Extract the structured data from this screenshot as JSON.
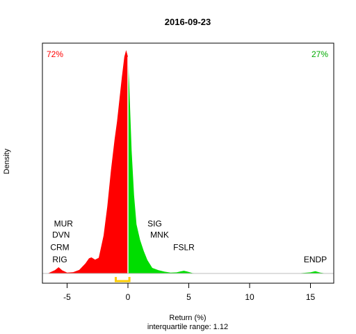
{
  "chart_data": {
    "type": "area",
    "title": "2016-09-23",
    "xlabel": "Return (%)",
    "ylabel": "Density",
    "subtitle": "interquartile range: 1.12",
    "xlim": [
      -7,
      16.5
    ],
    "x_ticks": [
      -5,
      0,
      5,
      10,
      15
    ],
    "x_tick_labels": [
      "-5",
      "0",
      "5",
      "10",
      "15"
    ],
    "negative_share": "72%",
    "positive_share": "27%",
    "colors": {
      "negative": "#ff0000",
      "positive": "#00dd00",
      "iqr": "#ffcc00",
      "baseline": "#bebebe"
    },
    "iqr_range": [
      -1.0,
      0.12
    ],
    "series": [
      {
        "name": "",
        "x": [
          -6.6,
          -6.0,
          -5.7,
          -5.4,
          -5.0,
          -4.5,
          -4.0,
          -3.5,
          -3.2,
          -3.0,
          -2.7,
          -2.4,
          -2.0,
          -1.7,
          -1.4,
          -1.1,
          -0.9,
          -0.7,
          -0.5,
          -0.3,
          -0.15,
          0.0,
          0.1,
          0.3,
          0.5,
          0.7,
          1.0,
          1.3,
          1.6,
          2.0,
          2.5,
          3.0,
          3.5,
          4.0,
          4.3,
          4.6,
          4.9,
          5.3,
          6.0,
          8.0,
          10.0,
          12.0,
          14.0,
          15.0,
          15.4,
          15.8,
          16.3
        ],
        "y": [
          0.0,
          0.015,
          0.028,
          0.014,
          0.004,
          0.006,
          0.016,
          0.045,
          0.068,
          0.072,
          0.062,
          0.07,
          0.17,
          0.3,
          0.46,
          0.6,
          0.68,
          0.78,
          0.88,
          0.97,
          1.0,
          0.97,
          0.85,
          0.55,
          0.35,
          0.22,
          0.15,
          0.1,
          0.06,
          0.025,
          0.015,
          0.008,
          0.004,
          0.005,
          0.009,
          0.012,
          0.008,
          0.002,
          0.0,
          0.0,
          0.0,
          0.0,
          0.001,
          0.005,
          0.01,
          0.004,
          0.0
        ]
      }
    ],
    "annotations": [
      {
        "label": "MUR",
        "x": -5.3,
        "y": 0.21
      },
      {
        "label": "DVN",
        "x": -5.5,
        "y": 0.16
      },
      {
        "label": "CRM",
        "x": -5.6,
        "y": 0.105
      },
      {
        "label": "RIG",
        "x": -5.6,
        "y": 0.05
      },
      {
        "label": "SIG",
        "x": 2.2,
        "y": 0.21
      },
      {
        "label": "MNK",
        "x": 2.6,
        "y": 0.16
      },
      {
        "label": "FSLR",
        "x": 4.6,
        "y": 0.105
      },
      {
        "label": "ENDP",
        "x": 15.4,
        "y": 0.05
      }
    ]
  }
}
